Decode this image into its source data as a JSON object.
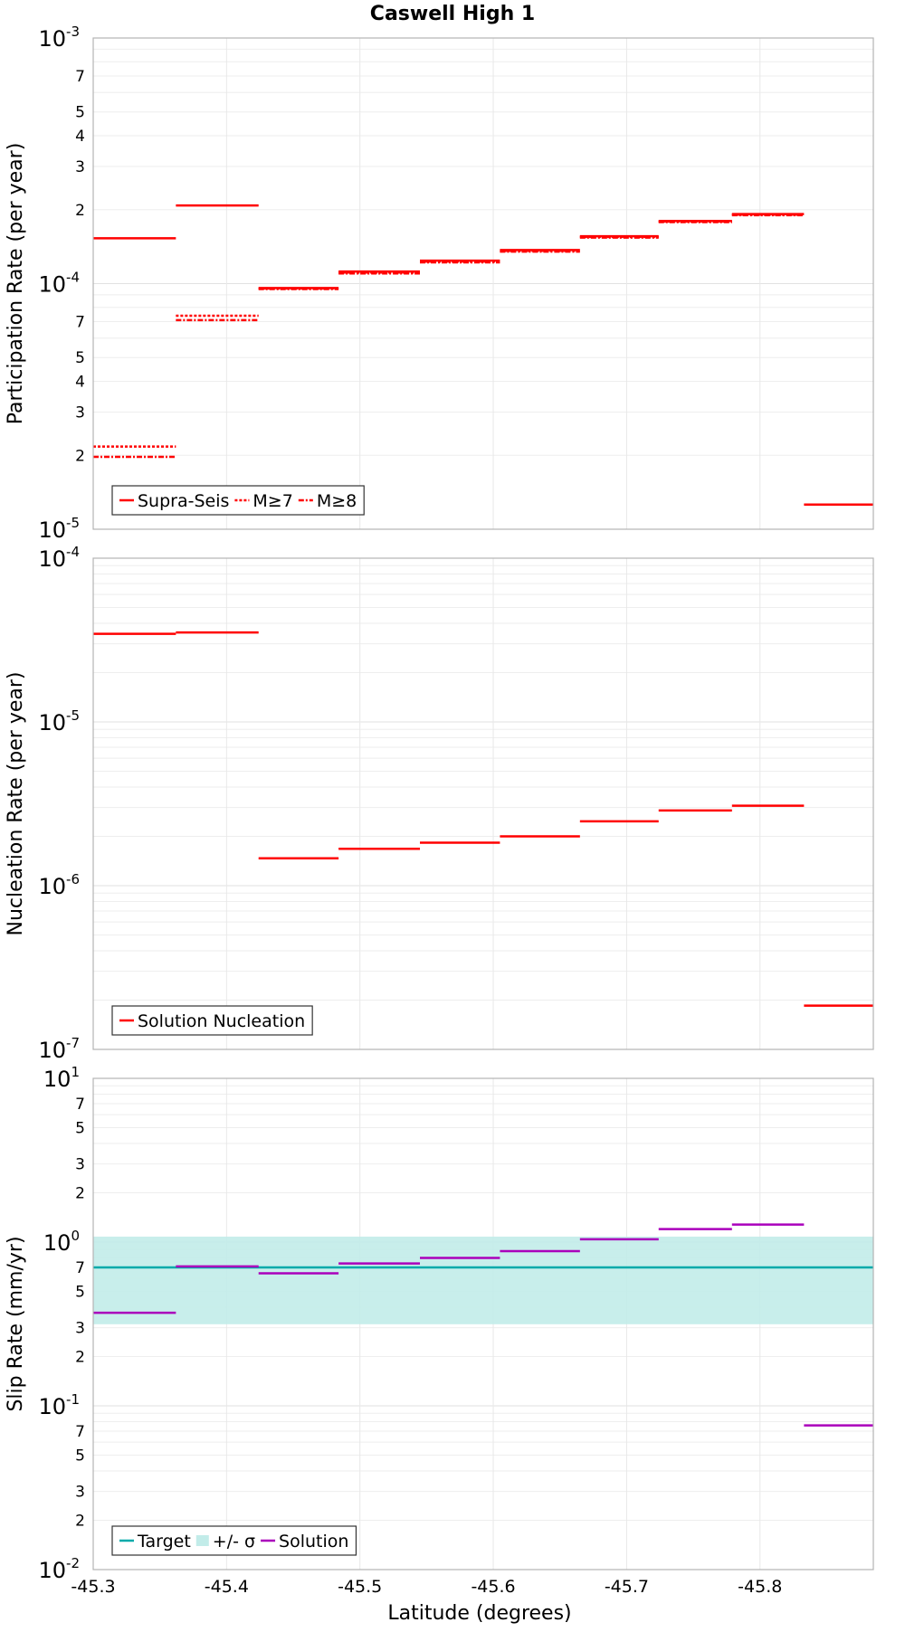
{
  "chart_data": [
    {
      "type": "line",
      "title": "Caswell High 1",
      "ylabel": "Participation Rate (per year)",
      "y_scale": "log",
      "ylim": [
        1e-05,
        0.001
      ],
      "xlim": [
        -45.3,
        -45.885
      ],
      "x_ticks": [
        "-45.3",
        "-45.4",
        "-45.5",
        "-45.6",
        "-45.7",
        "-45.8"
      ],
      "y_ticks": [
        {
          "base": "10",
          "exp": "-5",
          "value": 1e-05
        },
        {
          "base": "10",
          "exp": "-4",
          "value": 0.0001
        },
        {
          "base": "10",
          "exp": "-3",
          "value": 0.001
        }
      ],
      "y_minor_ticks": [
        {
          "label": "2",
          "value": 2e-05
        },
        {
          "label": "3",
          "value": 3e-05
        },
        {
          "label": "4",
          "value": 4e-05
        },
        {
          "label": "5",
          "value": 5e-05
        },
        {
          "label": "7",
          "value": 7e-05
        },
        {
          "label": "2",
          "value": 0.0002
        },
        {
          "label": "3",
          "value": 0.0003
        },
        {
          "label": "4",
          "value": 0.0004
        },
        {
          "label": "5",
          "value": 0.0005
        },
        {
          "label": "7",
          "value": 0.0007
        }
      ],
      "legend_position": "bottom-left",
      "series": [
        {
          "name": "Supra-Seis",
          "color": "#ff0000",
          "style": "solid",
          "segments": [
            {
              "x": [
                -45.3,
                -45.362
              ],
              "y": 0.000153
            },
            {
              "x": [
                -45.362,
                -45.424
              ],
              "y": 0.000208
            },
            {
              "x": [
                -45.424,
                -45.484
              ],
              "y": 9.6e-05
            },
            {
              "x": [
                -45.484,
                -45.545
              ],
              "y": 0.000112
            },
            {
              "x": [
                -45.545,
                -45.605
              ],
              "y": 0.000124
            },
            {
              "x": [
                -45.605,
                -45.665
              ],
              "y": 0.000137
            },
            {
              "x": [
                -45.665,
                -45.724
              ],
              "y": 0.000156
            },
            {
              "x": [
                -45.724,
                -45.779
              ],
              "y": 0.00018
            },
            {
              "x": [
                -45.779,
                -45.833
              ],
              "y": 0.000192
            },
            {
              "x": [
                -45.833,
                -45.885
              ],
              "y": 1.26e-05
            }
          ]
        },
        {
          "name": "M≥7",
          "color": "#ff0000",
          "style": "dotted",
          "segments": [
            {
              "x": [
                -45.3,
                -45.362
              ],
              "y": 2.17e-05
            },
            {
              "x": [
                -45.362,
                -45.424
              ],
              "y": 7.4e-05
            },
            {
              "x": [
                -45.424,
                -45.484
              ],
              "y": 9.55e-05
            },
            {
              "x": [
                -45.484,
                -45.545
              ],
              "y": 0.000111
            },
            {
              "x": [
                -45.545,
                -45.605
              ],
              "y": 0.000123
            },
            {
              "x": [
                -45.605,
                -45.665
              ],
              "y": 0.000136
            },
            {
              "x": [
                -45.665,
                -45.724
              ],
              "y": 0.000155
            },
            {
              "x": [
                -45.724,
                -45.779
              ],
              "y": 0.000179
            },
            {
              "x": [
                -45.779,
                -45.833
              ],
              "y": 0.000191
            }
          ]
        },
        {
          "name": "M≥8",
          "color": "#ff0000",
          "style": "dashdot",
          "segments": [
            {
              "x": [
                -45.3,
                -45.362
              ],
              "y": 1.97e-05
            },
            {
              "x": [
                -45.362,
                -45.424
              ],
              "y": 7.1e-05
            },
            {
              "x": [
                -45.424,
                -45.484
              ],
              "y": 9.5e-05
            },
            {
              "x": [
                -45.484,
                -45.545
              ],
              "y": 0.00011
            },
            {
              "x": [
                -45.545,
                -45.605
              ],
              "y": 0.000122
            },
            {
              "x": [
                -45.605,
                -45.665
              ],
              "y": 0.000135
            },
            {
              "x": [
                -45.665,
                -45.724
              ],
              "y": 0.000154
            },
            {
              "x": [
                -45.724,
                -45.779
              ],
              "y": 0.000178
            },
            {
              "x": [
                -45.779,
                -45.833
              ],
              "y": 0.00019
            }
          ]
        }
      ]
    },
    {
      "type": "line",
      "ylabel": "Nucleation Rate (per year)",
      "y_scale": "log",
      "ylim": [
        1e-07,
        0.0001
      ],
      "xlim": [
        -45.3,
        -45.885
      ],
      "y_ticks": [
        {
          "base": "10",
          "exp": "-7",
          "value": 1e-07
        },
        {
          "base": "10",
          "exp": "-6",
          "value": 1e-06
        },
        {
          "base": "10",
          "exp": "-5",
          "value": 1e-05
        },
        {
          "base": "10",
          "exp": "-4",
          "value": 0.0001
        }
      ],
      "legend_position": "bottom-left",
      "series": [
        {
          "name": "Solution Nucleation",
          "color": "#ff0000",
          "style": "solid",
          "segments": [
            {
              "x": [
                -45.3,
                -45.362
              ],
              "y": 3.45e-05
            },
            {
              "x": [
                -45.362,
                -45.424
              ],
              "y": 3.52e-05
            },
            {
              "x": [
                -45.424,
                -45.484
              ],
              "y": 1.47e-06
            },
            {
              "x": [
                -45.484,
                -45.545
              ],
              "y": 1.68e-06
            },
            {
              "x": [
                -45.545,
                -45.605
              ],
              "y": 1.83e-06
            },
            {
              "x": [
                -45.605,
                -45.665
              ],
              "y": 2e-06
            },
            {
              "x": [
                -45.665,
                -45.724
              ],
              "y": 2.47e-06
            },
            {
              "x": [
                -45.724,
                -45.779
              ],
              "y": 2.88e-06
            },
            {
              "x": [
                -45.779,
                -45.833
              ],
              "y": 3.08e-06
            },
            {
              "x": [
                -45.833,
                -45.885
              ],
              "y": 1.85e-07
            }
          ]
        }
      ]
    },
    {
      "type": "line",
      "ylabel": "Slip Rate (mm/yr)",
      "xlabel": "Latitude (degrees)",
      "y_scale": "log",
      "ylim": [
        0.01,
        10
      ],
      "xlim": [
        -45.3,
        -45.885
      ],
      "x_ticks": [
        "-45.3",
        "-45.4",
        "-45.5",
        "-45.6",
        "-45.7",
        "-45.8"
      ],
      "y_ticks": [
        {
          "base": "10",
          "exp": "-2",
          "value": 0.01
        },
        {
          "base": "10",
          "exp": "-1",
          "value": 0.1
        },
        {
          "base": "10",
          "exp": "0",
          "value": 1
        },
        {
          "base": "10",
          "exp": "1",
          "value": 10
        }
      ],
      "y_minor_ticks": [
        {
          "label": "2",
          "value": 0.02
        },
        {
          "label": "3",
          "value": 0.03
        },
        {
          "label": "5",
          "value": 0.05
        },
        {
          "label": "7",
          "value": 0.07
        },
        {
          "label": "2",
          "value": 0.2
        },
        {
          "label": "3",
          "value": 0.3
        },
        {
          "label": "5",
          "value": 0.5
        },
        {
          "label": "7",
          "value": 0.7
        },
        {
          "label": "2",
          "value": 2
        },
        {
          "label": "3",
          "value": 3
        },
        {
          "label": "5",
          "value": 5
        },
        {
          "label": "7",
          "value": 7
        }
      ],
      "legend_position": "bottom-left",
      "target": {
        "name": "Target",
        "color": "#00aaaa",
        "value": 0.7
      },
      "band": {
        "name": "+/- σ",
        "color": "#c2ece9",
        "lower": 0.315,
        "upper": 1.08
      },
      "series": [
        {
          "name": "Solution",
          "color": "#aa00bb",
          "style": "solid",
          "segments": [
            {
              "x": [
                -45.3,
                -45.362
              ],
              "y": 0.37
            },
            {
              "x": [
                -45.362,
                -45.424
              ],
              "y": 0.71
            },
            {
              "x": [
                -45.424,
                -45.484
              ],
              "y": 0.645
            },
            {
              "x": [
                -45.484,
                -45.545
              ],
              "y": 0.74
            },
            {
              "x": [
                -45.545,
                -45.605
              ],
              "y": 0.8
            },
            {
              "x": [
                -45.605,
                -45.665
              ],
              "y": 0.88
            },
            {
              "x": [
                -45.665,
                -45.724
              ],
              "y": 1.04
            },
            {
              "x": [
                -45.724,
                -45.779
              ],
              "y": 1.2
            },
            {
              "x": [
                -45.779,
                -45.833
              ],
              "y": 1.28
            },
            {
              "x": [
                -45.833,
                -45.885
              ],
              "y": 0.076
            }
          ]
        }
      ]
    }
  ]
}
